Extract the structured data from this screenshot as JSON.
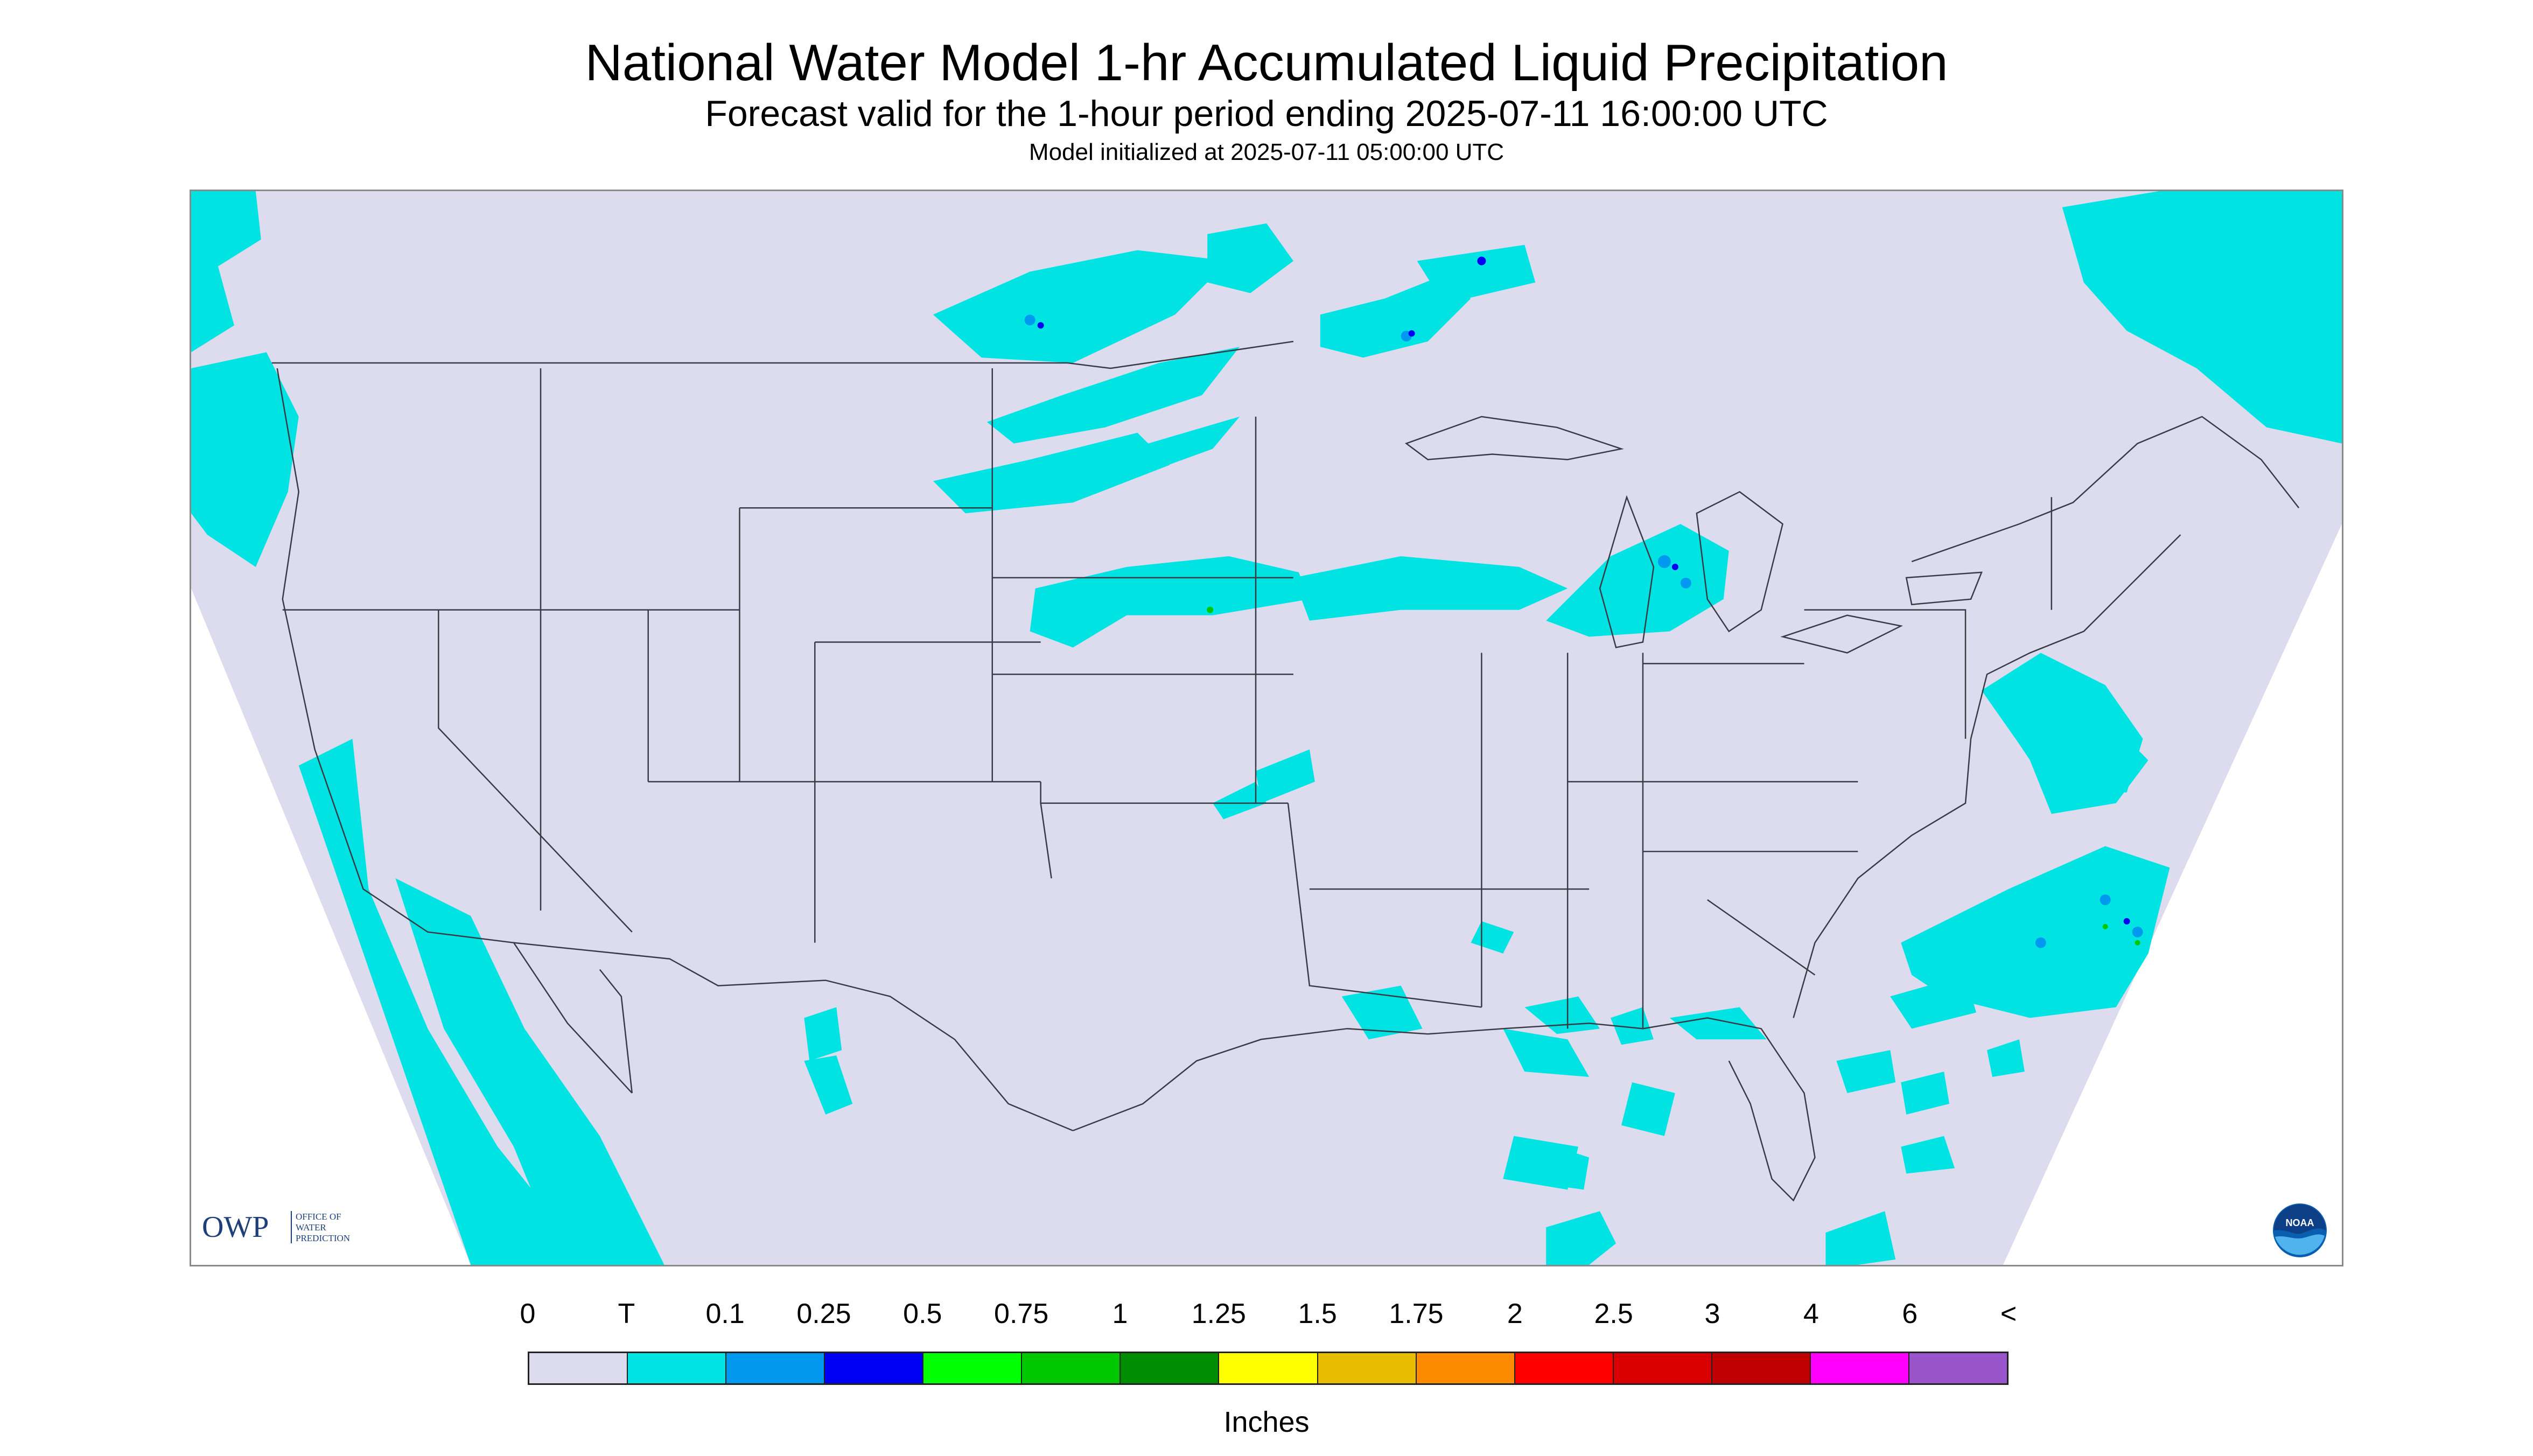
{
  "header": {
    "title": "National Water Model 1-hr Accumulated Liquid Precipitation",
    "subtitle": "Forecast valid for the 1-hour period ending 2025-07-11 16:00:00 UTC",
    "init_line": "Model initialized at 2025-07-11 05:00:00 UTC"
  },
  "logos": {
    "owp_mark": "OWP",
    "owp_text": [
      "OFFICE OF",
      "WATER",
      "PREDICTION"
    ],
    "noaa_text": "NOAA"
  },
  "map": {
    "background_color": "#dcdcee",
    "boundary_color": "#3a3a44",
    "precip_colors": {
      "trace": "#00e3e3",
      "light": "#0099f0",
      "moderate": "#0000f5",
      "green": "#00c800"
    }
  },
  "legend": {
    "tick_labels": [
      "0",
      "T",
      "0.1",
      "0.25",
      "0.5",
      "0.75",
      "1",
      "1.25",
      "1.5",
      "1.75",
      "2",
      "2.5",
      "3",
      "4",
      "6",
      "<"
    ],
    "colors": [
      "#dcdcee",
      "#00e3e3",
      "#0099f0",
      "#0000f5",
      "#00ff00",
      "#00c800",
      "#008c00",
      "#ffff00",
      "#e6bd00",
      "#ff8c00",
      "#ff0000",
      "#d80000",
      "#c00000",
      "#ff00ff",
      "#9955cc"
    ],
    "units": "Inches"
  }
}
